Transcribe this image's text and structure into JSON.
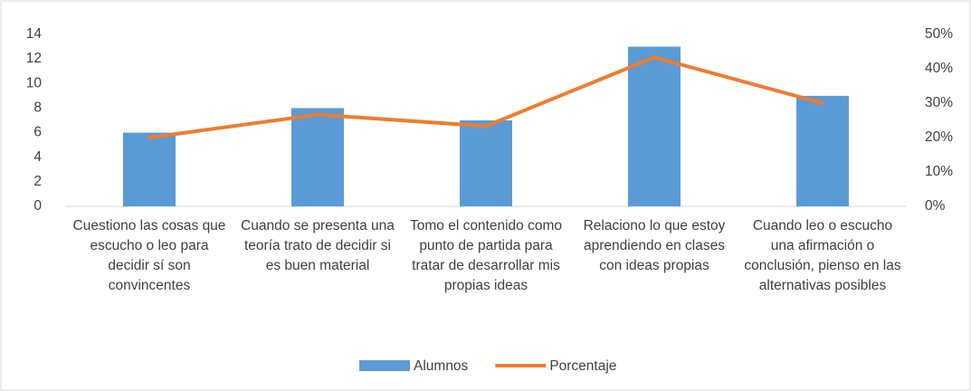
{
  "chart_data": {
    "type": "bar",
    "categories": [
      "Cuestiono las cosas que escucho o leo para decidir sí son convincentes",
      "Cuando se presenta una teoría trato de decidir si es buen material",
      "Tomo el contenido como punto de partida para tratar de desarrollar mis propias ideas",
      "Relaciono lo que estoy aprendiendo en clases con ideas propias",
      "Cuando leo o escucho una afirmación o conclusión, pienso en las alternativas posibles"
    ],
    "series": [
      {
        "name": "Alumnos",
        "type": "bar",
        "color": "#5b9bd5",
        "values": [
          6,
          8,
          7,
          13,
          9
        ]
      },
      {
        "name": "Porcentaje",
        "type": "line",
        "axis": "y2",
        "color": "#ed7d31",
        "values": [
          20,
          26.67,
          23.33,
          43.33,
          30
        ]
      }
    ],
    "ylim": [
      0,
      14
    ],
    "yticks": [
      0,
      2,
      4,
      6,
      8,
      10,
      12,
      14
    ],
    "y2lim": [
      0,
      50
    ],
    "y2ticks": [
      {
        "value": 0,
        "label": "0%"
      },
      {
        "value": 10,
        "label": "10%"
      },
      {
        "value": 20,
        "label": "20%"
      },
      {
        "value": 30,
        "label": "30%"
      },
      {
        "value": 40,
        "label": "40%"
      },
      {
        "value": 50,
        "label": "50%"
      }
    ],
    "grid": false,
    "legend": "bottom"
  }
}
